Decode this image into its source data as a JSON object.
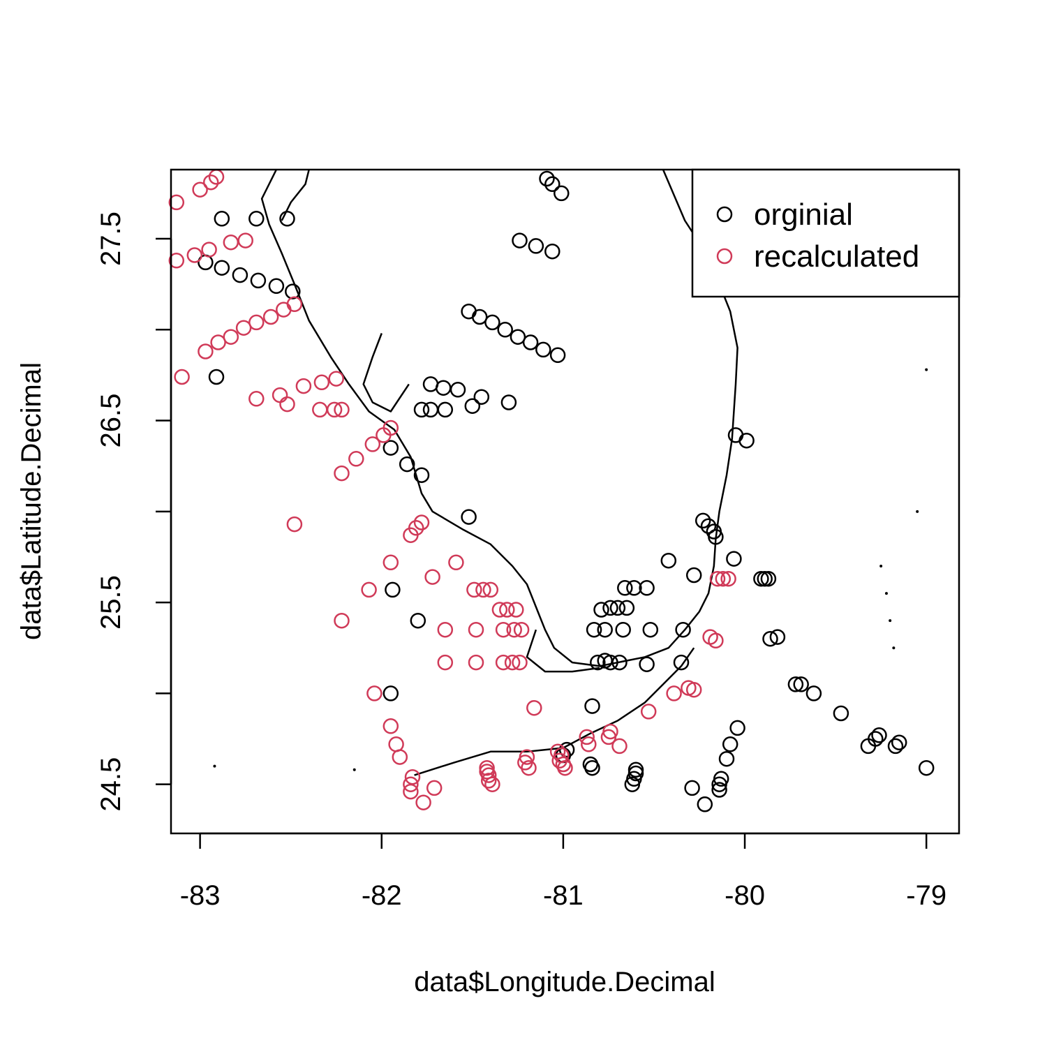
{
  "chart_data": {
    "type": "scatter",
    "xlabel": "data$Longitude.Decimal",
    "ylabel": "data$Latitude.Decimal",
    "xlim": [
      -83.16,
      -78.82
    ],
    "ylim": [
      24.23,
      27.88
    ],
    "x_ticks": [
      -83,
      -82,
      -81,
      -80,
      -79
    ],
    "x_tick_labels": [
      "-83",
      "-82",
      "-81",
      "-80",
      "-79"
    ],
    "y_ticks": [
      24.5,
      25.0,
      25.5,
      26.0,
      26.5,
      27.0,
      27.5
    ],
    "y_tick_labels": [
      "24.5",
      "",
      "25.5",
      "",
      "26.5",
      "",
      "27.5"
    ],
    "grid": false,
    "legend": "top-right",
    "series": [
      {
        "name": "orginial",
        "color": "#000000",
        "points": [
          [
            -81.09,
            27.83
          ],
          [
            -81.06,
            27.8
          ],
          [
            -81.01,
            27.75
          ],
          [
            -82.88,
            27.61
          ],
          [
            -82.69,
            27.61
          ],
          [
            -82.52,
            27.61
          ],
          [
            -81.24,
            27.49
          ],
          [
            -81.15,
            27.46
          ],
          [
            -81.06,
            27.43
          ],
          [
            -82.97,
            27.37
          ],
          [
            -82.88,
            27.34
          ],
          [
            -82.78,
            27.3
          ],
          [
            -82.68,
            27.27
          ],
          [
            -82.58,
            27.24
          ],
          [
            -82.49,
            27.21
          ],
          [
            -81.52,
            27.1
          ],
          [
            -81.46,
            27.07
          ],
          [
            -81.39,
            27.04
          ],
          [
            -81.32,
            27.0
          ],
          [
            -81.25,
            26.96
          ],
          [
            -81.18,
            26.93
          ],
          [
            -81.11,
            26.89
          ],
          [
            -81.03,
            26.86
          ],
          [
            -82.91,
            26.74
          ],
          [
            -81.73,
            26.7
          ],
          [
            -81.66,
            26.68
          ],
          [
            -81.58,
            26.67
          ],
          [
            -81.5,
            26.58
          ],
          [
            -81.45,
            26.63
          ],
          [
            -81.3,
            26.6
          ],
          [
            -81.78,
            26.56
          ],
          [
            -81.73,
            26.56
          ],
          [
            -81.65,
            26.56
          ],
          [
            -80.05,
            26.42
          ],
          [
            -79.99,
            26.39
          ],
          [
            -81.95,
            26.35
          ],
          [
            -81.86,
            26.26
          ],
          [
            -81.78,
            26.2
          ],
          [
            -81.52,
            25.97
          ],
          [
            -80.23,
            25.95
          ],
          [
            -80.2,
            25.92
          ],
          [
            -80.17,
            25.89
          ],
          [
            -80.16,
            25.86
          ],
          [
            -80.42,
            25.73
          ],
          [
            -80.06,
            25.74
          ],
          [
            -80.28,
            25.65
          ],
          [
            -79.91,
            25.63
          ],
          [
            -79.89,
            25.63
          ],
          [
            -79.87,
            25.63
          ],
          [
            -81.94,
            25.57
          ],
          [
            -80.66,
            25.58
          ],
          [
            -80.61,
            25.58
          ],
          [
            -80.54,
            25.58
          ],
          [
            -80.74,
            25.47
          ],
          [
            -80.7,
            25.47
          ],
          [
            -80.79,
            25.46
          ],
          [
            -80.65,
            25.47
          ],
          [
            -81.8,
            25.4
          ],
          [
            -80.83,
            25.35
          ],
          [
            -80.77,
            25.35
          ],
          [
            -80.67,
            25.35
          ],
          [
            -80.52,
            25.35
          ],
          [
            -80.34,
            25.35
          ],
          [
            -79.86,
            25.3
          ],
          [
            -79.82,
            25.31
          ],
          [
            -80.81,
            25.17
          ],
          [
            -80.77,
            25.18
          ],
          [
            -80.74,
            25.17
          ],
          [
            -80.69,
            25.17
          ],
          [
            -80.54,
            25.16
          ],
          [
            -80.35,
            25.17
          ],
          [
            -81.95,
            25.0
          ],
          [
            -79.72,
            25.05
          ],
          [
            -79.69,
            25.05
          ],
          [
            -79.62,
            25.0
          ],
          [
            -80.84,
            24.93
          ],
          [
            -79.47,
            24.89
          ],
          [
            -79.26,
            24.77
          ],
          [
            -79.28,
            24.75
          ],
          [
            -79.32,
            24.71
          ],
          [
            -79.15,
            24.73
          ],
          [
            -79.17,
            24.71
          ],
          [
            -80.04,
            24.81
          ],
          [
            -80.08,
            24.72
          ],
          [
            -80.1,
            24.64
          ],
          [
            -80.98,
            24.69
          ],
          [
            -81.0,
            24.66
          ],
          [
            -80.85,
            24.61
          ],
          [
            -80.84,
            24.59
          ],
          [
            -80.6,
            24.58
          ],
          [
            -80.6,
            24.56
          ],
          [
            -80.61,
            24.53
          ],
          [
            -80.62,
            24.5
          ],
          [
            -80.13,
            24.53
          ],
          [
            -80.14,
            24.5
          ],
          [
            -80.14,
            24.47
          ],
          [
            -80.29,
            24.48
          ],
          [
            -80.22,
            24.39
          ],
          [
            -79.0,
            24.59
          ]
        ]
      },
      {
        "name": "recalculated",
        "color": "#D03A58",
        "points": [
          [
            -82.91,
            27.84
          ],
          [
            -82.94,
            27.81
          ],
          [
            -83.0,
            27.77
          ],
          [
            -83.13,
            27.7
          ],
          [
            -82.75,
            27.49
          ],
          [
            -82.83,
            27.48
          ],
          [
            -82.95,
            27.44
          ],
          [
            -83.03,
            27.41
          ],
          [
            -83.13,
            27.38
          ],
          [
            -82.48,
            27.14
          ],
          [
            -82.54,
            27.11
          ],
          [
            -82.61,
            27.07
          ],
          [
            -82.69,
            27.04
          ],
          [
            -82.76,
            27.01
          ],
          [
            -82.83,
            26.96
          ],
          [
            -82.9,
            26.93
          ],
          [
            -82.97,
            26.88
          ],
          [
            -83.1,
            26.74
          ],
          [
            -82.25,
            26.73
          ],
          [
            -82.33,
            26.71
          ],
          [
            -82.43,
            26.69
          ],
          [
            -82.56,
            26.64
          ],
          [
            -82.69,
            26.62
          ],
          [
            -82.52,
            26.59
          ],
          [
            -82.34,
            26.56
          ],
          [
            -82.26,
            26.56
          ],
          [
            -82.22,
            26.56
          ],
          [
            -81.95,
            26.46
          ],
          [
            -81.99,
            26.42
          ],
          [
            -82.05,
            26.37
          ],
          [
            -82.14,
            26.29
          ],
          [
            -82.22,
            26.21
          ],
          [
            -82.48,
            25.93
          ],
          [
            -81.78,
            25.94
          ],
          [
            -81.81,
            25.91
          ],
          [
            -81.84,
            25.87
          ],
          [
            -81.95,
            25.72
          ],
          [
            -81.59,
            25.72
          ],
          [
            -81.72,
            25.64
          ],
          [
            -80.15,
            25.63
          ],
          [
            -80.12,
            25.63
          ],
          [
            -80.09,
            25.63
          ],
          [
            -82.07,
            25.57
          ],
          [
            -81.49,
            25.57
          ],
          [
            -81.44,
            25.57
          ],
          [
            -81.4,
            25.57
          ],
          [
            -81.35,
            25.46
          ],
          [
            -81.31,
            25.46
          ],
          [
            -81.26,
            25.46
          ],
          [
            -82.22,
            25.4
          ],
          [
            -81.65,
            25.35
          ],
          [
            -81.48,
            25.35
          ],
          [
            -81.33,
            25.35
          ],
          [
            -81.27,
            25.35
          ],
          [
            -81.23,
            25.35
          ],
          [
            -80.19,
            25.31
          ],
          [
            -80.16,
            25.29
          ],
          [
            -81.65,
            25.17
          ],
          [
            -81.48,
            25.17
          ],
          [
            -81.33,
            25.17
          ],
          [
            -81.28,
            25.17
          ],
          [
            -81.24,
            25.17
          ],
          [
            -80.31,
            25.03
          ],
          [
            -80.28,
            25.02
          ],
          [
            -80.39,
            25.0
          ],
          [
            -82.04,
            25.0
          ],
          [
            -81.16,
            24.92
          ],
          [
            -80.53,
            24.9
          ],
          [
            -81.95,
            24.82
          ],
          [
            -80.74,
            24.79
          ],
          [
            -80.75,
            24.76
          ],
          [
            -80.87,
            24.76
          ],
          [
            -80.86,
            24.72
          ],
          [
            -80.69,
            24.71
          ],
          [
            -81.92,
            24.72
          ],
          [
            -81.9,
            24.65
          ],
          [
            -81.03,
            24.68
          ],
          [
            -81.01,
            24.66
          ],
          [
            -81.02,
            24.63
          ],
          [
            -81.0,
            24.61
          ],
          [
            -80.99,
            24.59
          ],
          [
            -81.2,
            24.65
          ],
          [
            -81.21,
            24.62
          ],
          [
            -81.19,
            24.59
          ],
          [
            -81.42,
            24.59
          ],
          [
            -81.42,
            24.57
          ],
          [
            -81.41,
            24.55
          ],
          [
            -81.41,
            24.52
          ],
          [
            -81.39,
            24.5
          ],
          [
            -81.83,
            24.54
          ],
          [
            -81.84,
            24.5
          ],
          [
            -81.84,
            24.46
          ],
          [
            -81.71,
            24.48
          ],
          [
            -81.77,
            24.4
          ]
        ]
      }
    ]
  }
}
